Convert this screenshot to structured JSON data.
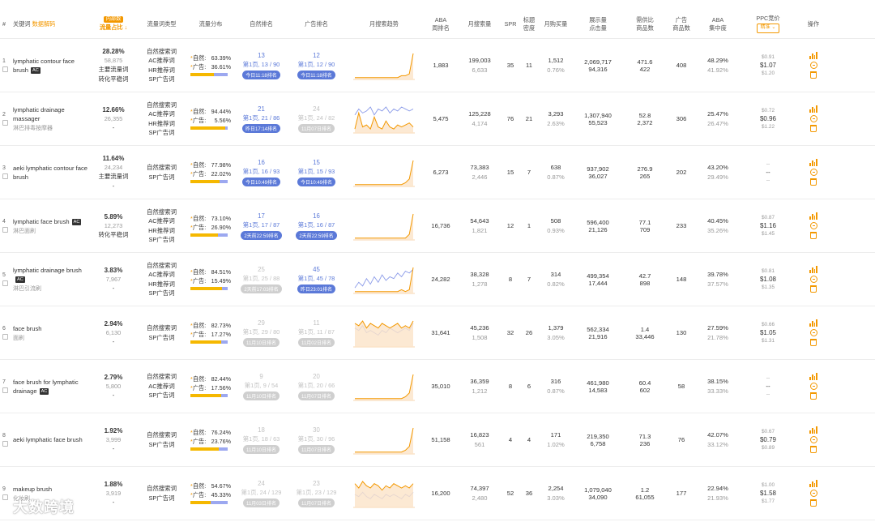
{
  "header": {
    "idx": "#",
    "keyword": "关键词",
    "keyword_sub": "数据解码",
    "share_badge": "内部数",
    "share": "流量占比",
    "type": "流量词类型",
    "dist": "流量分布",
    "organic_rank": "自然排名",
    "ad_rank": "广告排名",
    "trend": "月搜索趋势",
    "aba_rank": "ABA\n周排名",
    "monthly_search": "月搜索量",
    "spr": "SPR",
    "title_density": "标题\n密度",
    "monthly_purchase": "月购买量",
    "impressions": "展示量\n点击量",
    "supply_demand": "需供比\n商品数",
    "ad_products": "广告\n商品数",
    "aba_concentration": "ABA\n集中度",
    "ppc": "PPC竞价",
    "ppc_select": "精准",
    "ops": "操作"
  },
  "labels": {
    "organic": "自然:",
    "ad": "广告:"
  },
  "colors": {
    "accent": "#f39800",
    "blue": "#5b79d8",
    "organic_bar": "#f5b800",
    "ad_bar": "#9ca8f0",
    "grey": "#cfcfcf"
  },
  "watermark": "大数跨境",
  "rows": [
    {
      "idx": "1",
      "keyword": "lymphatic contour face brush",
      "ac": "AC",
      "keyword_cn": "",
      "share": "28.28%",
      "share_n": "58,875",
      "share_tags": [
        "主要流量词",
        "转化平稳词"
      ],
      "types": [
        "自然搜索词",
        "AC推荐词",
        "HR推荐词",
        "SP广告词"
      ],
      "organic_pct": "63.39%",
      "ad_pct": "36.61%",
      "organic_ratio": 0.6339,
      "organic_rank": {
        "pos": "13",
        "page": "第1页, 13 / 90",
        "tag": "今日11:18排名",
        "grey": false
      },
      "ad_rank": {
        "pos": "12",
        "page": "第1页, 12 / 90",
        "tag": "今日11:18排名",
        "grey": false
      },
      "trend": {
        "a": [
          1,
          1,
          1,
          1,
          1,
          1,
          1,
          1,
          1,
          1,
          1,
          1,
          2,
          2,
          3,
          14
        ],
        "b": []
      },
      "aba_rank": "1,883",
      "search": "199,003",
      "search_sub": "6,633",
      "spr": "35",
      "density": "11",
      "purchase": "1,512",
      "purchase_pct": "0.76%",
      "impr": "2,069,717",
      "clicks": "94,316",
      "sd": "471.6",
      "products": "422",
      "ad_products": "408",
      "conc": "48.29%",
      "conc_sub": "41.92%",
      "ppc_lo": "$0.91",
      "ppc": "$1.07",
      "ppc_hi": "$1.20"
    },
    {
      "idx": "2",
      "keyword": "lymphatic drainage massager",
      "ac": "",
      "keyword_cn": "淋巴排毒按摩器",
      "share": "12.66%",
      "share_n": "26,355",
      "share_tags": [
        "-"
      ],
      "types": [
        "自然搜索词",
        "AC推荐词",
        "HR推荐词",
        "SP广告词"
      ],
      "organic_pct": "94.44%",
      "ad_pct": "5.56%",
      "organic_ratio": 0.9444,
      "organic_rank": {
        "pos": "21",
        "page": "第1页, 21 / 86",
        "tag": "昨日17:14排名",
        "grey": false
      },
      "ad_rank": {
        "pos": "24",
        "page": "第1页, 24 / 82",
        "tag": "11月07日排名",
        "grey": true
      },
      "trend": {
        "a": [
          2,
          10,
          3,
          4,
          2,
          8,
          3,
          2,
          6,
          3,
          2,
          4,
          3,
          4,
          5,
          3
        ],
        "b": [
          9,
          12,
          10,
          11,
          13,
          9,
          12,
          11,
          13,
          10,
          12,
          11,
          13,
          12,
          11,
          12
        ]
      },
      "aba_rank": "5,475",
      "search": "125,228",
      "search_sub": "4,174",
      "spr": "76",
      "density": "21",
      "purchase": "3,293",
      "purchase_pct": "2.63%",
      "impr": "1,307,940",
      "clicks": "55,523",
      "sd": "52.8",
      "products": "2,372",
      "ad_products": "306",
      "conc": "25.47%",
      "conc_sub": "26.47%",
      "ppc_lo": "$0.72",
      "ppc": "$0.96",
      "ppc_hi": "$1.22"
    },
    {
      "idx": "3",
      "keyword": "aeki lymphatic contour face brush",
      "ac": "",
      "keyword_cn": "",
      "share": "11.64%",
      "share_n": "24,234",
      "share_tags": [
        "主要流量词",
        "-"
      ],
      "types": [
        "自然搜索词",
        "SP广告词"
      ],
      "organic_pct": "77.98%",
      "ad_pct": "22.02%",
      "organic_ratio": 0.7798,
      "organic_rank": {
        "pos": "16",
        "page": "第1页, 16 / 93",
        "tag": "今日10:49排名",
        "grey": false
      },
      "ad_rank": {
        "pos": "15",
        "page": "第1页, 15 / 93",
        "tag": "今日10:49排名",
        "grey": false
      },
      "trend": {
        "a": [
          1,
          1,
          1,
          1,
          1,
          1,
          1,
          1,
          1,
          1,
          1,
          1,
          1,
          2,
          4,
          14
        ],
        "b": []
      },
      "aba_rank": "6,273",
      "search": "73,383",
      "search_sub": "2,446",
      "spr": "15",
      "density": "7",
      "purchase": "638",
      "purchase_pct": "0.87%",
      "impr": "937,902",
      "clicks": "36,027",
      "sd": "276.9",
      "products": "265",
      "ad_products": "202",
      "conc": "43.20%",
      "conc_sub": "29.49%",
      "ppc_lo": "--",
      "ppc": "--",
      "ppc_hi": "--"
    },
    {
      "idx": "4",
      "keyword": "lymphatic face brush",
      "ac": "AC",
      "keyword_cn": "淋巴面刷",
      "share": "5.89%",
      "share_n": "12,273",
      "share_tags": [
        "转化平稳词"
      ],
      "types": [
        "自然搜索词",
        "AC推荐词",
        "HR推荐词",
        "SP广告词"
      ],
      "organic_pct": "73.10%",
      "ad_pct": "26.90%",
      "organic_ratio": 0.731,
      "organic_rank": {
        "pos": "17",
        "page": "第1页, 17 / 87",
        "tag": "2天前22:59排名",
        "grey": false
      },
      "ad_rank": {
        "pos": "16",
        "page": "第1页, 16 / 87",
        "tag": "2天前22:59排名",
        "grey": false
      },
      "trend": {
        "a": [
          1,
          1,
          1,
          1,
          1,
          1,
          1,
          1,
          1,
          1,
          1,
          1,
          1,
          1,
          3,
          14
        ],
        "b": []
      },
      "aba_rank": "16,736",
      "search": "54,643",
      "search_sub": "1,821",
      "spr": "12",
      "density": "1",
      "purchase": "508",
      "purchase_pct": "0.93%",
      "impr": "596,400",
      "clicks": "21,126",
      "sd": "77.1",
      "products": "709",
      "ad_products": "233",
      "conc": "40.45%",
      "conc_sub": "35.26%",
      "ppc_lo": "$0.87",
      "ppc": "$1.16",
      "ppc_hi": "$1.45"
    },
    {
      "idx": "5",
      "keyword": "lymphatic drainage brush",
      "ac": "AC",
      "keyword_cn": "淋巴引流刷",
      "share": "3.83%",
      "share_n": "7,967",
      "share_tags": [
        "-"
      ],
      "types": [
        "自然搜索词",
        "AC推荐词",
        "HR推荐词",
        "SP广告词"
      ],
      "organic_pct": "84.51%",
      "ad_pct": "15.49%",
      "organic_ratio": 0.8451,
      "organic_rank": {
        "pos": "25",
        "page": "第1页, 25 / 88",
        "tag": "2天前17:03排名",
        "grey": true
      },
      "ad_rank": {
        "pos": "45",
        "page": "第1页, 45 / 78",
        "tag": "昨日23:01排名",
        "grey": false
      },
      "trend": {
        "a": [
          1,
          1,
          1,
          1,
          1,
          1,
          1,
          1,
          1,
          1,
          1,
          1,
          2,
          1,
          2,
          14
        ],
        "b": [
          3,
          6,
          4,
          8,
          5,
          9,
          6,
          10,
          7,
          9,
          8,
          11,
          9,
          12,
          11,
          13
        ]
      },
      "aba_rank": "24,282",
      "search": "38,328",
      "search_sub": "1,278",
      "spr": "8",
      "density": "7",
      "purchase": "314",
      "purchase_pct": "0.82%",
      "impr": "499,354",
      "clicks": "17,444",
      "sd": "42.7",
      "products": "898",
      "ad_products": "148",
      "conc": "39.78%",
      "conc_sub": "37.57%",
      "ppc_lo": "$0.81",
      "ppc": "$1.08",
      "ppc_hi": "$1.35"
    },
    {
      "idx": "6",
      "keyword": "face brush",
      "ac": "",
      "keyword_cn": "面刷",
      "share": "2.94%",
      "share_n": "6,130",
      "share_tags": [
        "-"
      ],
      "types": [
        "自然搜索词",
        "SP广告词"
      ],
      "organic_pct": "82.73%",
      "ad_pct": "17.27%",
      "organic_ratio": 0.8273,
      "organic_rank": {
        "pos": "29",
        "page": "第1页, 29 / 80",
        "tag": "11月10日排名",
        "grey": true
      },
      "ad_rank": {
        "pos": "11",
        "page": "第1页, 11 / 87",
        "tag": "11月02日排名",
        "grey": true
      },
      "trend": {
        "a": [
          10,
          9,
          11,
          8,
          10,
          9,
          8,
          10,
          9,
          8,
          9,
          10,
          8,
          9,
          8,
          11
        ],
        "b": [
          8,
          7,
          9,
          6,
          7,
          6,
          5,
          7,
          6,
          8,
          7,
          6,
          7,
          8,
          7,
          10
        ]
      },
      "aba_rank": "31,641",
      "search": "45,236",
      "search_sub": "1,508",
      "spr": "32",
      "density": "26",
      "purchase": "1,379",
      "purchase_pct": "3.05%",
      "impr": "562,334",
      "clicks": "21,916",
      "sd": "1.4",
      "products": "33,446",
      "ad_products": "130",
      "conc": "27.59%",
      "conc_sub": "21.78%",
      "ppc_lo": "$0.66",
      "ppc": "$1.05",
      "ppc_hi": "$1.31"
    },
    {
      "idx": "7",
      "keyword": "face brush for lymphatic drainage",
      "ac": "AC",
      "keyword_cn": "",
      "share": "2.79%",
      "share_n": "5,800",
      "share_tags": [
        "-"
      ],
      "types": [
        "自然搜索词",
        "AC推荐词",
        "SP广告词"
      ],
      "organic_pct": "82.44%",
      "ad_pct": "17.56%",
      "organic_ratio": 0.8244,
      "organic_rank": {
        "pos": "9",
        "page": "第1页, 9 / 54",
        "tag": "11月10日排名",
        "grey": true
      },
      "ad_rank": {
        "pos": "20",
        "page": "第1页, 20 / 66",
        "tag": "11月07日排名",
        "grey": true
      },
      "trend": {
        "a": [
          1,
          1,
          1,
          1,
          1,
          1,
          1,
          1,
          1,
          1,
          1,
          1,
          1,
          2,
          4,
          14
        ],
        "b": []
      },
      "aba_rank": "35,010",
      "search": "36,359",
      "search_sub": "1,212",
      "spr": "8",
      "density": "6",
      "purchase": "316",
      "purchase_pct": "0.87%",
      "impr": "461,980",
      "clicks": "14,583",
      "sd": "60.4",
      "products": "602",
      "ad_products": "58",
      "conc": "38.15%",
      "conc_sub": "33.33%",
      "ppc_lo": "--",
      "ppc": "--",
      "ppc_hi": "--"
    },
    {
      "idx": "8",
      "keyword": "aeki lymphatic face brush",
      "ac": "",
      "keyword_cn": "",
      "share": "1.92%",
      "share_n": "3,999",
      "share_tags": [
        "-"
      ],
      "types": [
        "自然搜索词",
        "SP广告词"
      ],
      "organic_pct": "76.24%",
      "ad_pct": "23.76%",
      "organic_ratio": 0.7624,
      "organic_rank": {
        "pos": "18",
        "page": "第1页, 18 / 63",
        "tag": "11月10日排名",
        "grey": true
      },
      "ad_rank": {
        "pos": "30",
        "page": "第1页, 30 / 96",
        "tag": "11月07日排名",
        "grey": true
      },
      "trend": {
        "a": [
          1,
          1,
          1,
          1,
          1,
          1,
          1,
          1,
          1,
          1,
          1,
          1,
          1,
          2,
          4,
          14
        ],
        "b": []
      },
      "aba_rank": "51,158",
      "search": "16,823",
      "search_sub": "561",
      "spr": "4",
      "density": "4",
      "purchase": "171",
      "purchase_pct": "1.02%",
      "impr": "219,350",
      "clicks": "6,758",
      "sd": "71.3",
      "products": "236",
      "ad_products": "76",
      "conc": "42.07%",
      "conc_sub": "33.12%",
      "ppc_lo": "$0.67",
      "ppc": "$0.79",
      "ppc_hi": "$0.89"
    },
    {
      "idx": "9",
      "keyword": "makeup brush",
      "ac": "",
      "keyword_cn": "化妆刷",
      "share": "1.88%",
      "share_n": "3,919",
      "share_tags": [
        "-"
      ],
      "types": [
        "自然搜索词",
        "SP广告词"
      ],
      "organic_pct": "54.67%",
      "ad_pct": "45.33%",
      "organic_ratio": 0.5467,
      "organic_rank": {
        "pos": "24",
        "page": "第1页, 24 / 129",
        "tag": "11月03日排名",
        "grey": true
      },
      "ad_rank": {
        "pos": "23",
        "page": "第1页, 23 / 129",
        "tag": "11月07日排名",
        "grey": true
      },
      "trend": {
        "a": [
          11,
          9,
          12,
          10,
          9,
          11,
          10,
          8,
          10,
          9,
          11,
          10,
          9,
          10,
          9,
          11
        ],
        "b": [
          6,
          5,
          7,
          5,
          4,
          6,
          5,
          4,
          6,
          5,
          6,
          5,
          4,
          6,
          5,
          7
        ]
      },
      "aba_rank": "16,200",
      "search": "74,397",
      "search_sub": "2,480",
      "spr": "52",
      "density": "36",
      "purchase": "2,254",
      "purchase_pct": "3.03%",
      "impr": "1,079,040",
      "clicks": "34,090",
      "sd": "1.2",
      "products": "61,055",
      "ad_products": "177",
      "conc": "22.94%",
      "conc_sub": "21.93%",
      "ppc_lo": "$1.00",
      "ppc": "$1.58",
      "ppc_hi": "$1.77"
    }
  ]
}
